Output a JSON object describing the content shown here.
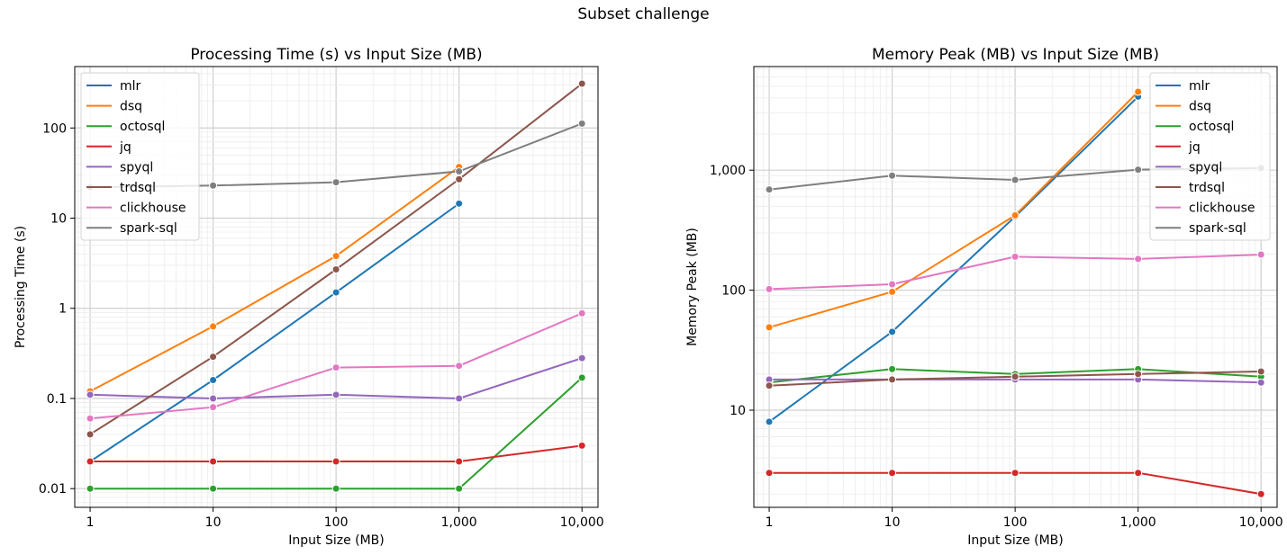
{
  "figure_title": "Subset challenge",
  "colors": {
    "mlr": "#1f77b4",
    "dsq": "#ff7f0e",
    "octosql": "#2ca02c",
    "jq": "#d62728",
    "spyql": "#9467bd",
    "trdsql": "#8c564b",
    "clickhouse": "#e377c2",
    "spark-sql": "#7f7f7f"
  },
  "chart_data": [
    {
      "type": "line",
      "title": "Processing Time (s) vs Input Size (MB)",
      "xlabel": "Input Size (MB)",
      "ylabel": "Processing Time (s)",
      "xscale": "log",
      "yscale": "log",
      "x": [
        1,
        10,
        100,
        1000,
        10000
      ],
      "xticks": [
        1,
        10,
        100,
        1000,
        10000
      ],
      "xtick_labels": [
        "1",
        "10",
        "100",
        "1,000",
        "10,000"
      ],
      "yticks": [
        0.01,
        0.1,
        1,
        10,
        100
      ],
      "ytick_labels": [
        "0.01",
        "0.1",
        "1",
        "10",
        "100"
      ],
      "xlim": [
        0.75,
        13500
      ],
      "ylim": [
        0.0062,
        480
      ],
      "grid": true,
      "legend": "upper left",
      "series": [
        {
          "name": "mlr",
          "values": [
            0.02,
            0.16,
            1.5,
            14.5,
            null
          ]
        },
        {
          "name": "dsq",
          "values": [
            0.12,
            0.63,
            3.8,
            37,
            null
          ]
        },
        {
          "name": "octosql",
          "values": [
            0.01,
            0.01,
            0.01,
            0.01,
            0.17
          ]
        },
        {
          "name": "jq",
          "values": [
            0.02,
            0.02,
            0.02,
            0.02,
            0.03
          ]
        },
        {
          "name": "spyql",
          "values": [
            0.11,
            0.1,
            0.11,
            0.1,
            0.28
          ]
        },
        {
          "name": "trdsql",
          "values": [
            0.04,
            0.29,
            2.7,
            27,
            310
          ]
        },
        {
          "name": "clickhouse",
          "values": [
            0.06,
            0.08,
            0.22,
            0.23,
            0.88
          ]
        },
        {
          "name": "spark-sql",
          "values": [
            22,
            23,
            25,
            33,
            112
          ]
        }
      ]
    },
    {
      "type": "line",
      "title": "Memory Peak (MB) vs Input Size (MB)",
      "xlabel": "Input Size (MB)",
      "ylabel": "Memory Peak (MB)",
      "xscale": "log",
      "yscale": "log",
      "x": [
        1,
        10,
        100,
        1000,
        10000
      ],
      "xticks": [
        1,
        10,
        100,
        1000,
        10000
      ],
      "xtick_labels": [
        "1",
        "10",
        "100",
        "1,000",
        "10,000"
      ],
      "yticks": [
        10,
        100,
        1000
      ],
      "ytick_labels": [
        "10",
        "100",
        "1,000"
      ],
      "xlim": [
        0.75,
        13500
      ],
      "ylim": [
        1.55,
        7300
      ],
      "grid": true,
      "legend": "upper right",
      "series": [
        {
          "name": "mlr",
          "values": [
            8,
            45,
            410,
            4100,
            null
          ]
        },
        {
          "name": "dsq",
          "values": [
            49,
            97,
            420,
            4500,
            null
          ]
        },
        {
          "name": "octosql",
          "values": [
            17,
            22,
            20,
            22,
            19
          ]
        },
        {
          "name": "jq",
          "values": [
            3,
            3,
            3,
            3,
            2
          ]
        },
        {
          "name": "spyql",
          "values": [
            18,
            18,
            18,
            18,
            17
          ]
        },
        {
          "name": "trdsql",
          "values": [
            16,
            18,
            19,
            20,
            21
          ]
        },
        {
          "name": "clickhouse",
          "values": [
            102,
            112,
            190,
            182,
            198
          ]
        },
        {
          "name": "spark-sql",
          "values": [
            690,
            900,
            830,
            1010,
            1040
          ]
        }
      ]
    }
  ]
}
